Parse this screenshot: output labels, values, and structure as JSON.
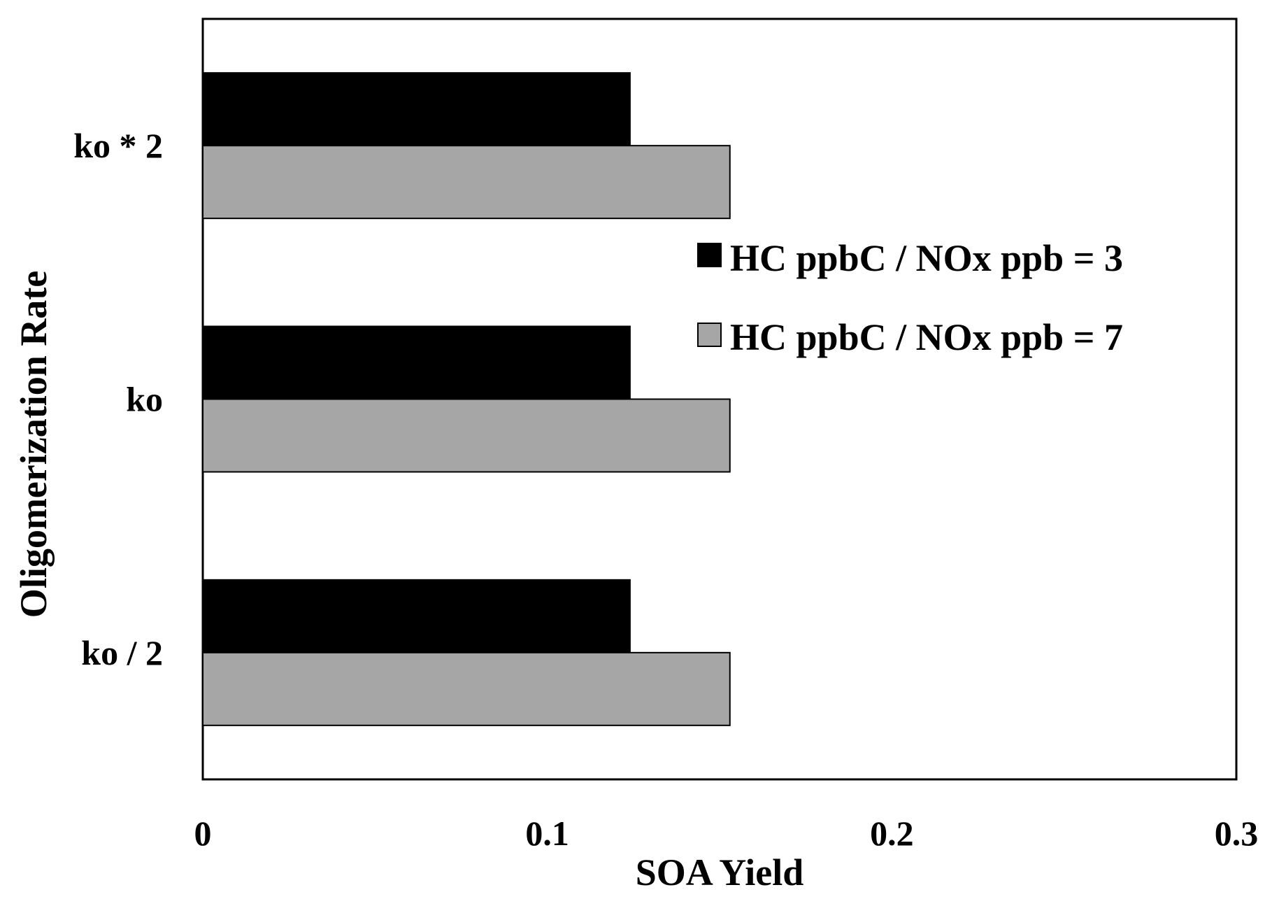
{
  "chart_data": {
    "type": "bar",
    "orientation": "horizontal",
    "categories": [
      "ko * 2",
      "ko",
      "ko / 2"
    ],
    "series": [
      {
        "name": "HC ppbC / NOx ppb = 3",
        "color": "#000000",
        "values": [
          0.124,
          0.124,
          0.124
        ]
      },
      {
        "name": "HC ppbC / NOx ppb = 7",
        "color": "#a6a6a6",
        "values": [
          0.153,
          0.153,
          0.153
        ]
      }
    ],
    "xlabel": "SOA Yield",
    "ylabel": "Oligomerization Rate",
    "xlim": [
      0,
      0.3
    ],
    "xticks": [
      "0",
      "0.1",
      "0.2",
      "0.3"
    ],
    "grid": false,
    "legend_position": "top-right"
  }
}
